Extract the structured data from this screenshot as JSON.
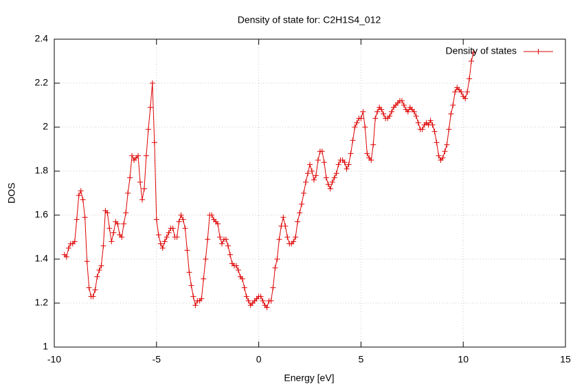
{
  "chart_data": {
    "type": "line",
    "title": "Density of state for: C2H1S4_012",
    "x_label": "Energy [eV]",
    "y_label": "DOS",
    "xlim": [
      -10,
      15
    ],
    "xticks": [
      -10,
      -5,
      0,
      5,
      10,
      15
    ],
    "ylim": [
      1,
      2.4
    ],
    "yticks": [
      1,
      1.2,
      1.4,
      1.6,
      1.8,
      2,
      2.2,
      2.4
    ],
    "grid": true,
    "legend": "top-right",
    "x": [
      -9.5,
      -9.4,
      -9.3,
      -9.2,
      -9.1,
      -9.0,
      -8.9,
      -8.8,
      -8.7,
      -8.6,
      -8.5,
      -8.4,
      -8.3,
      -8.2,
      -8.1,
      -8.0,
      -7.9,
      -7.8,
      -7.7,
      -7.6,
      -7.5,
      -7.4,
      -7.3,
      -7.2,
      -7.1,
      -7.0,
      -6.9,
      -6.8,
      -6.7,
      -6.6,
      -6.5,
      -6.4,
      -6.3,
      -6.2,
      -6.1,
      -6.0,
      -5.9,
      -5.8,
      -5.7,
      -5.6,
      -5.5,
      -5.4,
      -5.3,
      -5.2,
      -5.1,
      -5.0,
      -4.9,
      -4.8,
      -4.7,
      -4.6,
      -4.5,
      -4.4,
      -4.3,
      -4.2,
      -4.1,
      -4.0,
      -3.9,
      -3.8,
      -3.7,
      -3.6,
      -3.5,
      -3.4,
      -3.3,
      -3.2,
      -3.1,
      -3.0,
      -2.9,
      -2.8,
      -2.7,
      -2.6,
      -2.5,
      -2.4,
      -2.3,
      -2.2,
      -2.1,
      -2.0,
      -1.9,
      -1.8,
      -1.7,
      -1.6,
      -1.5,
      -1.4,
      -1.3,
      -1.2,
      -1.1,
      -1.0,
      -0.9,
      -0.8,
      -0.7,
      -0.6,
      -0.5,
      -0.4,
      -0.3,
      -0.2,
      -0.1,
      0.0,
      0.1,
      0.2,
      0.3,
      0.4,
      0.5,
      0.6,
      0.7,
      0.8,
      0.9,
      1.0,
      1.1,
      1.2,
      1.3,
      1.4,
      1.5,
      1.6,
      1.7,
      1.8,
      1.9,
      2.0,
      2.1,
      2.2,
      2.3,
      2.4,
      2.5,
      2.6,
      2.7,
      2.8,
      2.9,
      3.0,
      3.1,
      3.2,
      3.3,
      3.4,
      3.5,
      3.6,
      3.7,
      3.8,
      3.9,
      4.0,
      4.1,
      4.2,
      4.3,
      4.4,
      4.5,
      4.6,
      4.7,
      4.8,
      4.9,
      5.0,
      5.1,
      5.2,
      5.3,
      5.4,
      5.5,
      5.6,
      5.7,
      5.8,
      5.9,
      6.0,
      6.1,
      6.2,
      6.3,
      6.4,
      6.5,
      6.6,
      6.7,
      6.8,
      6.9,
      7.0,
      7.1,
      7.2,
      7.3,
      7.4,
      7.5,
      7.6,
      7.7,
      7.8,
      7.9,
      8.0,
      8.1,
      8.2,
      8.3,
      8.4,
      8.5,
      8.6,
      8.7,
      8.8,
      8.9,
      9.0,
      9.1,
      9.2,
      9.3,
      9.4,
      9.5,
      9.6,
      9.7,
      9.8,
      9.9,
      10.0,
      10.1,
      10.2,
      10.3,
      10.4,
      10.5
    ],
    "series": [
      {
        "name": "Density of states",
        "color": "#dd0000",
        "values": [
          1.42,
          1.41,
          1.45,
          1.47,
          1.47,
          1.48,
          1.58,
          1.69,
          1.71,
          1.67,
          1.59,
          1.39,
          1.27,
          1.23,
          1.23,
          1.26,
          1.32,
          1.35,
          1.37,
          1.46,
          1.62,
          1.61,
          1.54,
          1.48,
          1.52,
          1.57,
          1.56,
          1.51,
          1.5,
          1.56,
          1.61,
          1.7,
          1.77,
          1.87,
          1.85,
          1.86,
          1.87,
          1.75,
          1.67,
          1.72,
          1.87,
          1.99,
          2.09,
          2.2,
          1.93,
          1.58,
          1.51,
          1.47,
          1.45,
          1.48,
          1.5,
          1.52,
          1.54,
          1.54,
          1.5,
          1.5,
          1.57,
          1.6,
          1.58,
          1.54,
          1.44,
          1.34,
          1.28,
          1.23,
          1.19,
          1.21,
          1.21,
          1.22,
          1.31,
          1.4,
          1.49,
          1.6,
          1.6,
          1.58,
          1.57,
          1.56,
          1.5,
          1.47,
          1.49,
          1.49,
          1.46,
          1.42,
          1.38,
          1.37,
          1.37,
          1.35,
          1.32,
          1.31,
          1.27,
          1.23,
          1.21,
          1.19,
          1.2,
          1.21,
          1.22,
          1.23,
          1.23,
          1.21,
          1.19,
          1.18,
          1.21,
          1.21,
          1.27,
          1.36,
          1.4,
          1.49,
          1.55,
          1.59,
          1.55,
          1.5,
          1.47,
          1.47,
          1.48,
          1.5,
          1.57,
          1.61,
          1.65,
          1.7,
          1.75,
          1.79,
          1.83,
          1.8,
          1.76,
          1.78,
          1.85,
          1.89,
          1.89,
          1.84,
          1.77,
          1.74,
          1.72,
          1.75,
          1.77,
          1.79,
          1.83,
          1.85,
          1.85,
          1.84,
          1.81,
          1.83,
          1.88,
          1.94,
          2.0,
          2.02,
          2.04,
          2.04,
          2.07,
          2.0,
          1.88,
          1.86,
          1.85,
          1.92,
          2.04,
          2.07,
          2.09,
          2.08,
          2.06,
          2.04,
          2.04,
          2.05,
          2.07,
          2.09,
          2.1,
          2.11,
          2.12,
          2.12,
          2.1,
          2.08,
          2.07,
          2.09,
          2.08,
          2.07,
          2.05,
          2.02,
          1.99,
          1.99,
          2.01,
          2.02,
          2.01,
          2.03,
          2.01,
          1.98,
          1.93,
          1.87,
          1.85,
          1.86,
          1.89,
          1.92,
          1.99,
          2.06,
          2.1,
          2.16,
          2.18,
          2.17,
          2.16,
          2.14,
          2.13,
          2.16,
          2.22,
          2.3,
          2.34
        ]
      }
    ]
  }
}
